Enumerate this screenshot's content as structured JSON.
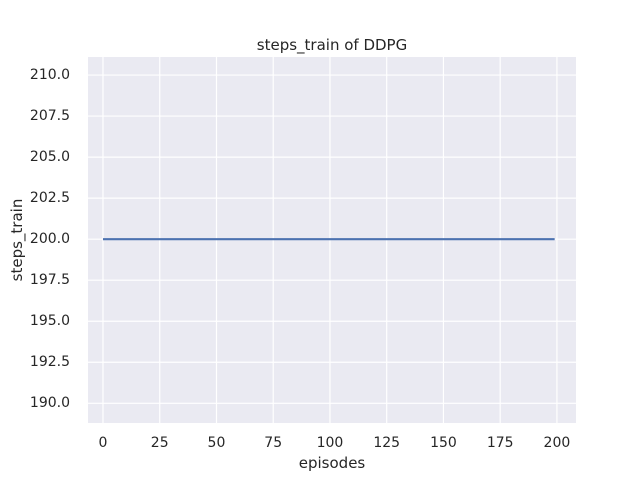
{
  "chart_data": {
    "type": "line",
    "title": "steps_train of DDPG",
    "xlabel": "episodes",
    "ylabel": "steps_train",
    "x_ticks": [
      0,
      25,
      50,
      75,
      100,
      125,
      150,
      175,
      200
    ],
    "x_tick_labels": [
      "0",
      "25",
      "50",
      "75",
      "100",
      "125",
      "150",
      "175",
      "200"
    ],
    "y_ticks": [
      190.0,
      192.5,
      195.0,
      197.5,
      200.0,
      202.5,
      205.0,
      207.5,
      210.0
    ],
    "y_tick_labels": [
      "190.0",
      "192.5",
      "195.0",
      "197.5",
      "200.0",
      "202.5",
      "205.0",
      "207.5",
      "210.0"
    ],
    "xlim": [
      -6.6,
      208.4
    ],
    "ylim": [
      188.8,
      211.1
    ],
    "grid": true,
    "legend": "none",
    "plot_bg_color": "#EAEAF2",
    "grid_color": "#FFFFFF",
    "text_color": "#262626",
    "series": [
      {
        "name": "DDPG",
        "color": "#4C72B0",
        "linewidth": 2.2,
        "x": [
          0,
          199
        ],
        "y": [
          200,
          200
        ],
        "description": "steps_train is constant at 200 for every episode from 0 to 199"
      }
    ]
  }
}
